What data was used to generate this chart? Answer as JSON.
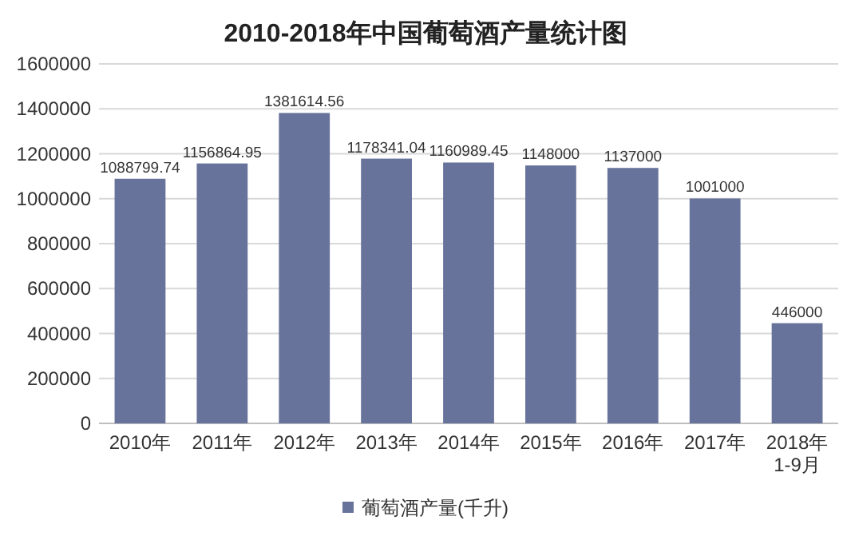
{
  "chart_data": {
    "type": "bar",
    "title": "2010-2018年中国葡萄酒产量统计图",
    "categories": [
      "2010年",
      "2011年",
      "2012年",
      "2013年",
      "2014年",
      "2015年",
      "2016年",
      "2017年",
      "2018年1-9月"
    ],
    "series": [
      {
        "name": "葡萄酒产量(千升)",
        "color": "#67739a",
        "values": [
          1088799.74,
          1156864.95,
          1381614.56,
          1178341.04,
          1160989.45,
          1148000,
          1137000,
          1001000,
          446000
        ]
      }
    ],
    "ylim": [
      0,
      1600000
    ],
    "yticks": [
      0,
      200000,
      400000,
      600000,
      800000,
      1000000,
      1200000,
      1400000,
      1600000
    ],
    "grid": "y",
    "legend": "bottom",
    "data_labels": true
  }
}
